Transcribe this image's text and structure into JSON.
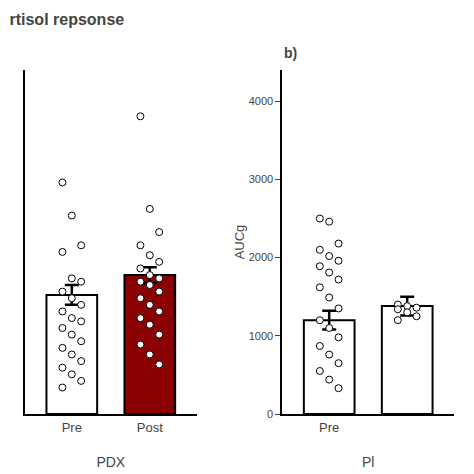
{
  "chart_data": [
    {
      "type": "bar",
      "title": "rtisol repsonse",
      "xlabel": "PDX",
      "categories": [
        "Pre",
        "Post"
      ],
      "values": [
        1.8,
        2.1
      ],
      "errors": [
        0.15,
        0.12
      ],
      "colors": [
        "white",
        "#8B0000"
      ],
      "points": [
        [
          3.5,
          3.0,
          2.55,
          2.45,
          2.05,
          2.0,
          1.85,
          1.75,
          1.65,
          1.55,
          1.45,
          1.4,
          1.3,
          1.2,
          1.1,
          1.0,
          0.9,
          0.8,
          0.7,
          0.6,
          0.5,
          0.4
        ],
        [
          4.5,
          3.1,
          2.75,
          2.55,
          2.4,
          2.3,
          2.2,
          2.1,
          2.05,
          2.0,
          1.95,
          1.85,
          1.75,
          1.65,
          1.55,
          1.45,
          1.35,
          1.2,
          1.05,
          0.9,
          0.75
        ]
      ],
      "ylim": [
        0,
        5.2
      ],
      "yticks": [],
      "tick_labels": "x",
      "grid": false
    },
    {
      "type": "bar",
      "title": "b)",
      "xlabel": "Pl",
      "ylabel": "AUCg",
      "categories": [
        "Pre",
        null
      ],
      "values": [
        1200,
        1380
      ],
      "errors": [
        120,
        120
      ],
      "colors": [
        "white",
        "white"
      ],
      "points": [
        [
          2500,
          2460,
          2180,
          2100,
          2020,
          1960,
          1890,
          1810,
          1720,
          1620,
          1490,
          1350,
          1200,
          1100,
          980,
          870,
          760,
          650,
          550,
          440,
          330
        ],
        [
          1400,
          1380,
          1360,
          1340,
          1300,
          1250,
          1200
        ]
      ],
      "ylim": [
        0,
        4400
      ],
      "yticks": [
        0,
        1000,
        2000,
        3000,
        4000
      ],
      "grid": false
    }
  ]
}
